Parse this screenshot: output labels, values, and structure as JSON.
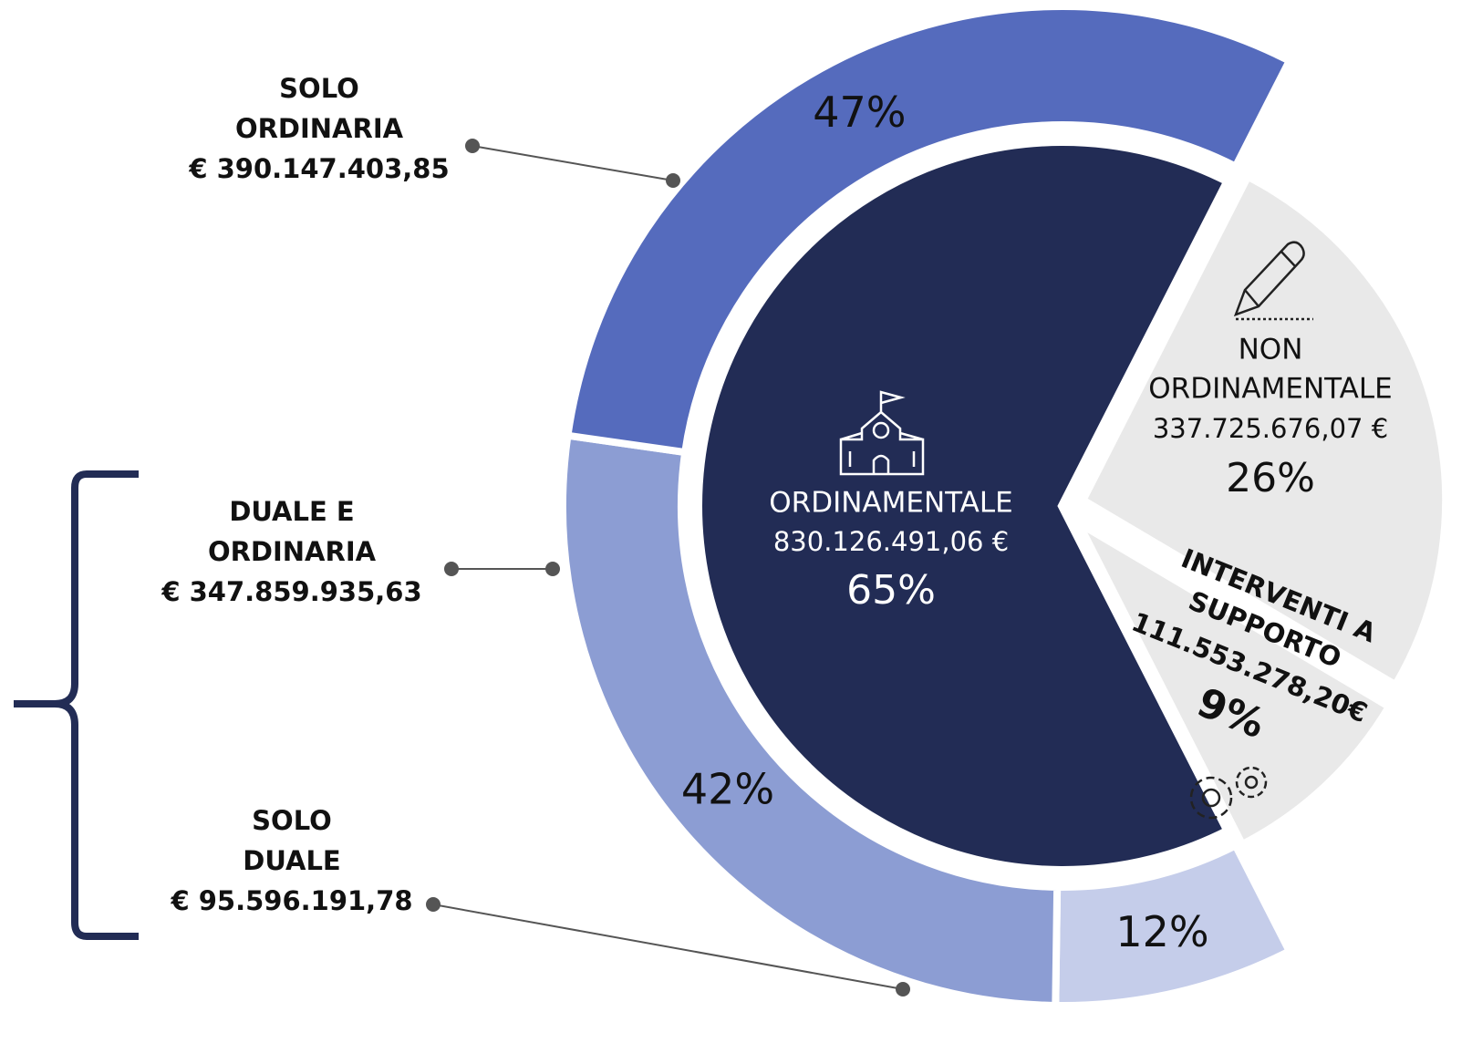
{
  "chart_data": {
    "type": "nested_pie",
    "inner": {
      "categories": [
        [
          "NON",
          "ORDINAMENTALE"
        ],
        [
          "INTERVENTI A",
          "SUPPORTO"
        ],
        [
          "ORDINAMENTALE"
        ]
      ],
      "amounts": [
        "337.725.676,07 €",
        "111.553.278,20€",
        "830.126.491,06 €"
      ],
      "values": [
        26,
        9,
        65
      ],
      "value_labels": [
        "26%",
        "9%",
        "65%"
      ],
      "colors": [
        "#e9e9e9",
        "#e9e9e9",
        "#222c55"
      ]
    },
    "ring": {
      "categories": [
        [
          "SOLO",
          "DUALE"
        ],
        [
          "DUALE E",
          "ORDINARIA"
        ],
        [
          "SOLO",
          "ORDINARIA"
        ]
      ],
      "amounts": [
        "€ 95.596.191,78",
        "€ 347.859.935,63",
        "€ 390.147.403,85"
      ],
      "values": [
        12,
        42,
        47
      ],
      "value_labels": [
        "12%",
        "42%",
        "47%"
      ],
      "colors": [
        "#c5cdea",
        "#8c9dd3",
        "#556bbd"
      ]
    }
  }
}
